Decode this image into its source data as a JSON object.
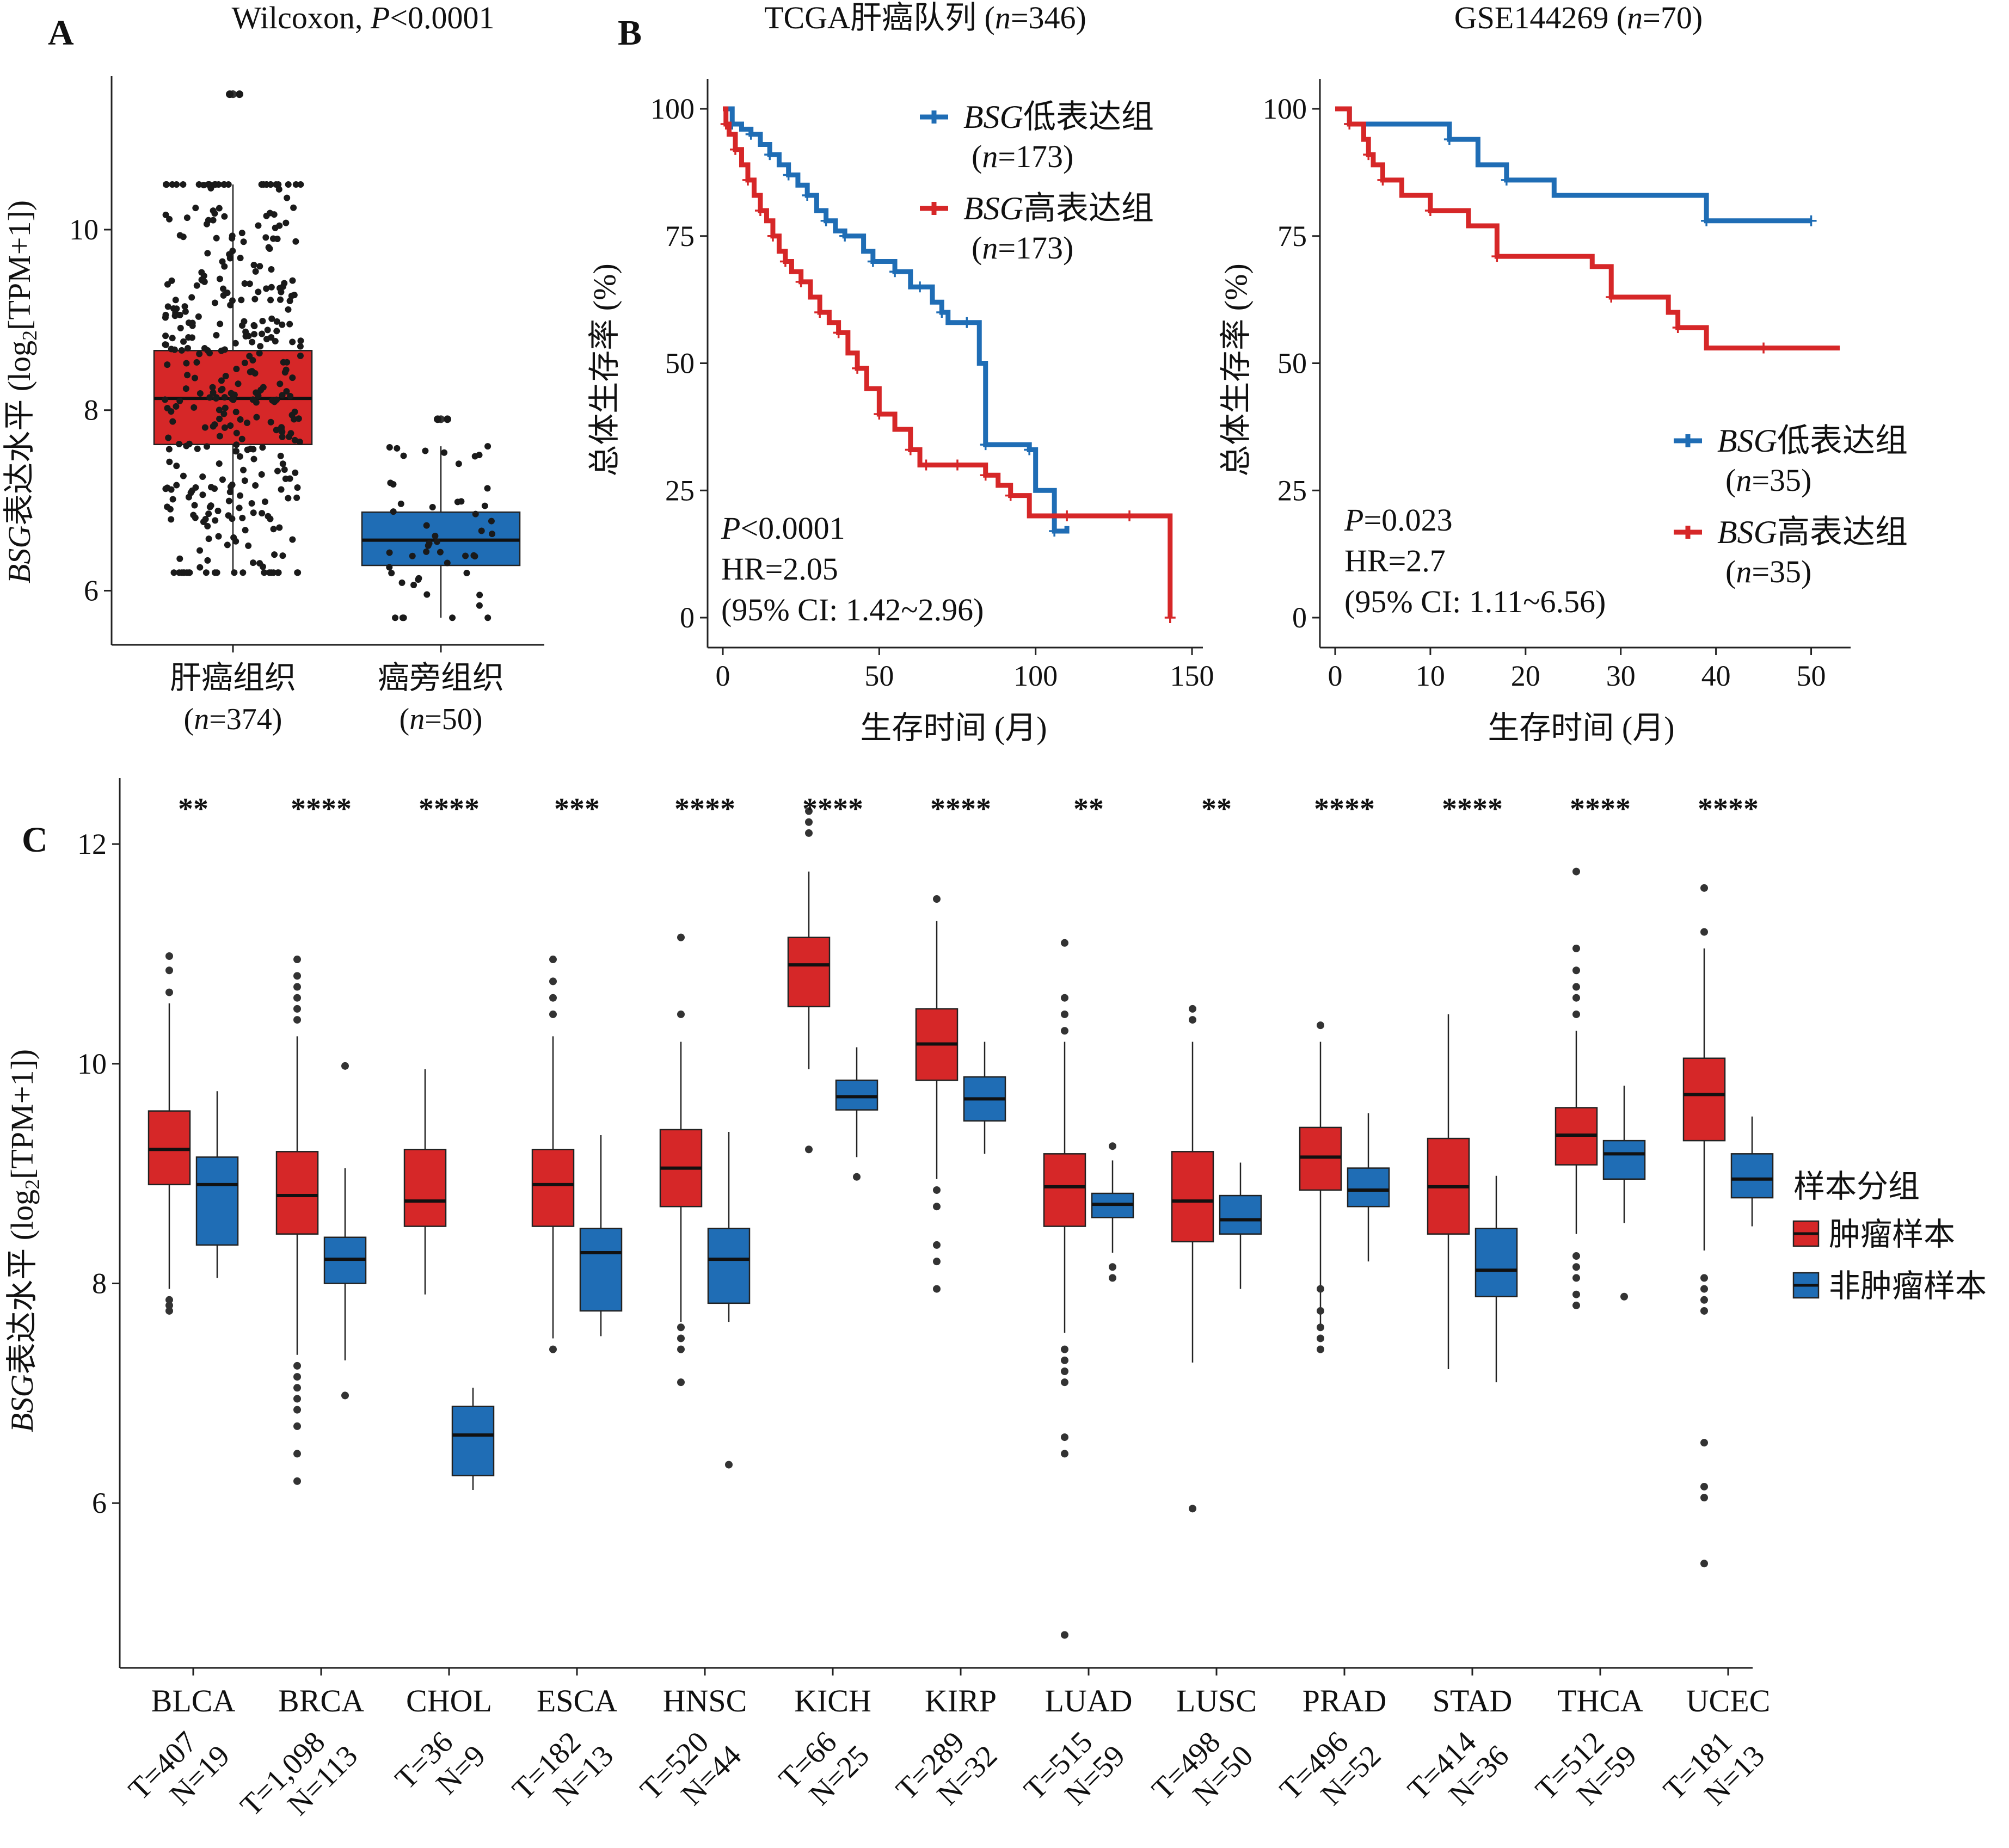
{
  "colors": {
    "high": "#d62728",
    "low": "#1f6db5",
    "axis": "#222222",
    "point": "#1a1a1a"
  },
  "panel_letters": {
    "a": "A",
    "b": "B",
    "c": "C"
  },
  "chart_data": [
    {
      "id": "A",
      "type": "boxplot",
      "title": "Wilcoxon, P<0.0001",
      "title_prefix": "Wilcoxon, ",
      "title_p": "P",
      "title_rest": "<0.0001",
      "ylabel_italic": "BSG",
      "ylabel_main": "表达水平 (log",
      "ylabel_sub": "2",
      "ylabel_end": "[TPM+1])",
      "ylim": [
        5.4,
        11.7
      ],
      "yticks": [
        6,
        8,
        10
      ],
      "categories": [
        "肝癌组织",
        "癌旁组织"
      ],
      "category_n": [
        "(n=374)",
        "(n=50)"
      ],
      "boxes": [
        {
          "category": "肝癌组织",
          "n": 374,
          "color": "high",
          "whisker_low": 6.2,
          "q1": 7.62,
          "median": 8.13,
          "q3": 8.66,
          "whisker_high": 10.5,
          "outliers": [
            11.5,
            11.5
          ]
        },
        {
          "category": "癌旁组织",
          "n": 50,
          "color": "low",
          "whisker_low": 5.7,
          "q1": 6.28,
          "median": 6.56,
          "q3": 6.87,
          "whisker_high": 7.6,
          "outliers": [
            7.9,
            7.9
          ]
        }
      ]
    },
    {
      "id": "B1",
      "type": "line",
      "subtype": "kaplan-meier",
      "title": "TCGA肝癌队列 (n=346)",
      "title_main": "TCGA肝癌队列 (",
      "title_n": "n",
      "title_end": "=346)",
      "xlabel": "生存时间 (月)",
      "ylabel": "总体生存率 (%)",
      "xlim": [
        0,
        150
      ],
      "ylim": [
        0,
        100
      ],
      "xticks": [
        0,
        50,
        100,
        150
      ],
      "yticks": [
        0,
        25,
        50,
        75,
        100
      ],
      "legend_position": "top-right",
      "series": [
        {
          "name": "BSG低表达组",
          "name_italic": "BSG",
          "name_rest": "低表达组",
          "n_label": "(n=173)",
          "color": "low",
          "x": [
            0,
            3,
            6,
            9,
            12,
            15,
            18,
            21,
            24,
            27,
            30,
            33,
            36,
            39,
            45,
            48,
            52,
            55,
            60,
            63,
            67,
            70,
            72,
            78,
            82,
            84,
            90,
            98,
            100,
            106,
            110
          ],
          "y": [
            100,
            97,
            96,
            95,
            93,
            91,
            89,
            87,
            85,
            83,
            80,
            78,
            76,
            75,
            72,
            70,
            70,
            68,
            65,
            65,
            62,
            60,
            58,
            58,
            50,
            34,
            34,
            33,
            25,
            17,
            18
          ]
        },
        {
          "name": "BSG高表达组",
          "name_italic": "BSG",
          "name_rest": "高表达组",
          "n_label": "(n=173)",
          "color": "high",
          "x": [
            0,
            1,
            2,
            4,
            6,
            8,
            10,
            12,
            14,
            16,
            18,
            20,
            22,
            25,
            28,
            31,
            34,
            37,
            40,
            43,
            46,
            50,
            55,
            60,
            63,
            65,
            70,
            75,
            80,
            84,
            88,
            92,
            98,
            110,
            120,
            130,
            140,
            143
          ],
          "y": [
            100,
            97,
            95,
            92,
            89,
            86,
            83,
            80,
            78,
            75,
            72,
            70,
            68,
            66,
            63,
            60,
            58,
            56,
            52,
            49,
            45,
            40,
            37,
            33,
            30,
            30,
            30,
            30,
            30,
            28,
            26,
            24,
            20,
            20,
            20,
            20,
            20,
            0
          ]
        }
      ],
      "annotations": [
        {
          "text": "P<0.0001",
          "italic": "P",
          "rest": "<0.0001"
        },
        {
          "text": "HR=2.05"
        },
        {
          "text": "(95% CI: 1.42~2.96)"
        }
      ]
    },
    {
      "id": "B2",
      "type": "line",
      "subtype": "kaplan-meier",
      "title": "GSE144269 (n=70)",
      "title_main": "GSE144269 (",
      "title_n": "n",
      "title_end": "=70)",
      "xlabel": "生存时间 (月)",
      "ylabel": "总体生存率 (%)",
      "xlim": [
        0,
        53
      ],
      "ylim": [
        0,
        100
      ],
      "xticks": [
        0,
        10,
        20,
        30,
        40,
        50
      ],
      "yticks": [
        0,
        25,
        50,
        75,
        100
      ],
      "legend_position": "bottom-right",
      "series": [
        {
          "name": "BSG低表达组",
          "name_italic": "BSG",
          "name_rest": "低表达组",
          "n_label": "(n=35)",
          "color": "low",
          "x": [
            0,
            1.5,
            11,
            12,
            15,
            18,
            23,
            39,
            44,
            50
          ],
          "y": [
            100,
            97,
            97,
            94,
            89,
            86,
            83,
            78,
            78,
            78
          ]
        },
        {
          "name": "BSG高表达组",
          "name_italic": "BSG",
          "name_rest": "高表达组",
          "n_label": "(n=35)",
          "color": "high",
          "x": [
            0,
            1.5,
            3,
            3.5,
            4,
            5,
            7,
            10,
            14,
            17,
            27,
            29,
            35,
            36,
            39,
            45,
            53
          ],
          "y": [
            100,
            97,
            94,
            91,
            89,
            86,
            83,
            80,
            77,
            71,
            69,
            63,
            60,
            57,
            53,
            53,
            53
          ]
        }
      ],
      "annotations": [
        {
          "text": "P=0.023",
          "italic": "P",
          "rest": "=0.023"
        },
        {
          "text": "HR=2.7"
        },
        {
          "text": "(95% CI: 1.11~6.56)"
        }
      ]
    },
    {
      "id": "C",
      "type": "boxplot",
      "ylabel_italic": "BSG",
      "ylabel_main": "表达水平 (log",
      "ylabel_sub": "2",
      "ylabel_end": "[TPM+1])",
      "ylim": [
        4.5,
        12.6
      ],
      "yticks": [
        6,
        8,
        10,
        12
      ],
      "legend_title": "样本分组",
      "legend_position": "right",
      "legend": [
        {
          "label": "肿瘤样本",
          "color": "high"
        },
        {
          "label": "非肿瘤样本",
          "color": "low"
        }
      ],
      "categories": [
        "BLCA",
        "BRCA",
        "CHOL",
        "ESCA",
        "HNSC",
        "KICH",
        "KIRP",
        "LUAD",
        "LUSC",
        "PRAD",
        "STAD",
        "THCA",
        "UCEC"
      ],
      "sample_sizes": [
        {
          "t": "T=407",
          "n": "N=19"
        },
        {
          "t": "T=1,098",
          "n": "N=113"
        },
        {
          "t": "T=36",
          "n": "N=9"
        },
        {
          "t": "T=182",
          "n": "N=13"
        },
        {
          "t": "T=520",
          "n": "N=44"
        },
        {
          "t": "T=66",
          "n": "N=25"
        },
        {
          "t": "T=289",
          "n": "N=32"
        },
        {
          "t": "T=515",
          "n": "N=59"
        },
        {
          "t": "T=498",
          "n": "N=50"
        },
        {
          "t": "T=496",
          "n": "N=52"
        },
        {
          "t": "T=414",
          "n": "N=36"
        },
        {
          "t": "T=512",
          "n": "N=59"
        },
        {
          "t": "T=181",
          "n": "N=13"
        }
      ],
      "significance": [
        "**",
        "****",
        "****",
        "***",
        "****",
        "****",
        "****",
        "**",
        "**",
        "****",
        "****",
        "****",
        "****"
      ],
      "tumor": [
        {
          "whisker_low": 7.95,
          "q1": 8.9,
          "median": 9.22,
          "q3": 9.57,
          "whisker_high": 10.55,
          "outliers": [
            7.75,
            7.8,
            7.85,
            10.65,
            10.85,
            10.98
          ]
        },
        {
          "whisker_low": 7.35,
          "q1": 8.45,
          "median": 8.8,
          "q3": 9.2,
          "whisker_high": 10.25,
          "outliers": [
            6.2,
            6.45,
            6.7,
            6.85,
            6.95,
            7.05,
            7.15,
            7.25,
            10.4,
            10.5,
            10.6,
            10.7,
            10.8,
            10.95
          ]
        },
        {
          "whisker_low": 7.9,
          "q1": 8.52,
          "median": 8.75,
          "q3": 9.22,
          "whisker_high": 9.95,
          "outliers": []
        },
        {
          "whisker_low": 7.5,
          "q1": 8.52,
          "median": 8.9,
          "q3": 9.22,
          "whisker_high": 10.25,
          "outliers": [
            7.4,
            10.45,
            10.6,
            10.75,
            10.95
          ]
        },
        {
          "whisker_low": 7.65,
          "q1": 8.7,
          "median": 9.05,
          "q3": 9.4,
          "whisker_high": 10.2,
          "outliers": [
            7.1,
            7.4,
            7.5,
            7.6,
            10.45,
            11.15
          ]
        },
        {
          "whisker_low": 9.95,
          "q1": 10.52,
          "median": 10.9,
          "q3": 11.15,
          "whisker_high": 11.75,
          "outliers": [
            9.22,
            12.1,
            12.2,
            12.3
          ]
        },
        {
          "whisker_low": 8.95,
          "q1": 9.85,
          "median": 10.18,
          "q3": 10.5,
          "whisker_high": 11.3,
          "outliers": [
            7.95,
            8.2,
            8.35,
            8.7,
            8.85,
            11.5
          ]
        },
        {
          "whisker_low": 7.55,
          "q1": 8.52,
          "median": 8.88,
          "q3": 9.18,
          "whisker_high": 10.2,
          "outliers": [
            4.8,
            6.45,
            6.6,
            7.1,
            7.2,
            7.3,
            7.4,
            10.3,
            10.45,
            10.6,
            11.1
          ]
        },
        {
          "whisker_low": 7.28,
          "q1": 8.38,
          "median": 8.75,
          "q3": 9.2,
          "whisker_high": 10.2,
          "outliers": [
            5.95,
            10.4,
            10.5
          ]
        },
        {
          "whisker_low": 7.6,
          "q1": 8.85,
          "median": 9.15,
          "q3": 9.42,
          "whisker_high": 10.2,
          "outliers": [
            7.4,
            7.5,
            7.6,
            7.75,
            7.95,
            10.35
          ]
        },
        {
          "whisker_low": 7.22,
          "q1": 8.45,
          "median": 8.88,
          "q3": 9.32,
          "whisker_high": 10.45,
          "outliers": []
        },
        {
          "whisker_low": 8.45,
          "q1": 9.08,
          "median": 9.35,
          "q3": 9.6,
          "whisker_high": 10.3,
          "outliers": [
            7.8,
            7.9,
            8.05,
            8.15,
            8.25,
            10.45,
            10.6,
            10.7,
            10.85,
            11.05,
            11.75
          ]
        },
        {
          "whisker_low": 8.3,
          "q1": 9.3,
          "median": 9.72,
          "q3": 10.05,
          "whisker_high": 11.05,
          "outliers": [
            5.45,
            6.05,
            6.15,
            6.55,
            7.75,
            7.85,
            7.95,
            8.05,
            11.2,
            11.6
          ]
        }
      ],
      "normal": [
        {
          "whisker_low": 8.05,
          "q1": 8.35,
          "median": 8.9,
          "q3": 9.15,
          "whisker_high": 9.75,
          "outliers": []
        },
        {
          "whisker_low": 7.3,
          "q1": 8.0,
          "median": 8.22,
          "q3": 8.42,
          "whisker_high": 9.05,
          "outliers": [
            6.98,
            9.98
          ]
        },
        {
          "whisker_low": 6.12,
          "q1": 6.25,
          "median": 6.62,
          "q3": 6.88,
          "whisker_high": 7.05,
          "outliers": []
        },
        {
          "whisker_low": 7.52,
          "q1": 7.75,
          "median": 8.28,
          "q3": 8.5,
          "whisker_high": 9.35,
          "outliers": []
        },
        {
          "whisker_low": 7.65,
          "q1": 7.82,
          "median": 8.22,
          "q3": 8.5,
          "whisker_high": 9.38,
          "outliers": [
            6.35
          ]
        },
        {
          "whisker_low": 9.15,
          "q1": 9.58,
          "median": 9.7,
          "q3": 9.85,
          "whisker_high": 10.15,
          "outliers": [
            8.97
          ]
        },
        {
          "whisker_low": 9.18,
          "q1": 9.48,
          "median": 9.68,
          "q3": 9.88,
          "whisker_high": 10.2,
          "outliers": []
        },
        {
          "whisker_low": 8.28,
          "q1": 8.6,
          "median": 8.72,
          "q3": 8.82,
          "whisker_high": 9.12,
          "outliers": [
            8.05,
            8.15,
            9.25
          ]
        },
        {
          "whisker_low": 7.95,
          "q1": 8.45,
          "median": 8.58,
          "q3": 8.8,
          "whisker_high": 9.1,
          "outliers": []
        },
        {
          "whisker_low": 8.2,
          "q1": 8.7,
          "median": 8.85,
          "q3": 9.05,
          "whisker_high": 9.55,
          "outliers": []
        },
        {
          "whisker_low": 7.1,
          "q1": 7.88,
          "median": 8.12,
          "q3": 8.5,
          "whisker_high": 8.98,
          "outliers": []
        },
        {
          "whisker_low": 8.55,
          "q1": 8.95,
          "median": 9.18,
          "q3": 9.3,
          "whisker_high": 9.8,
          "outliers": [
            7.88
          ]
        },
        {
          "whisker_low": 8.52,
          "q1": 8.78,
          "median": 8.95,
          "q3": 9.18,
          "whisker_high": 9.52,
          "outliers": []
        }
      ]
    }
  ]
}
